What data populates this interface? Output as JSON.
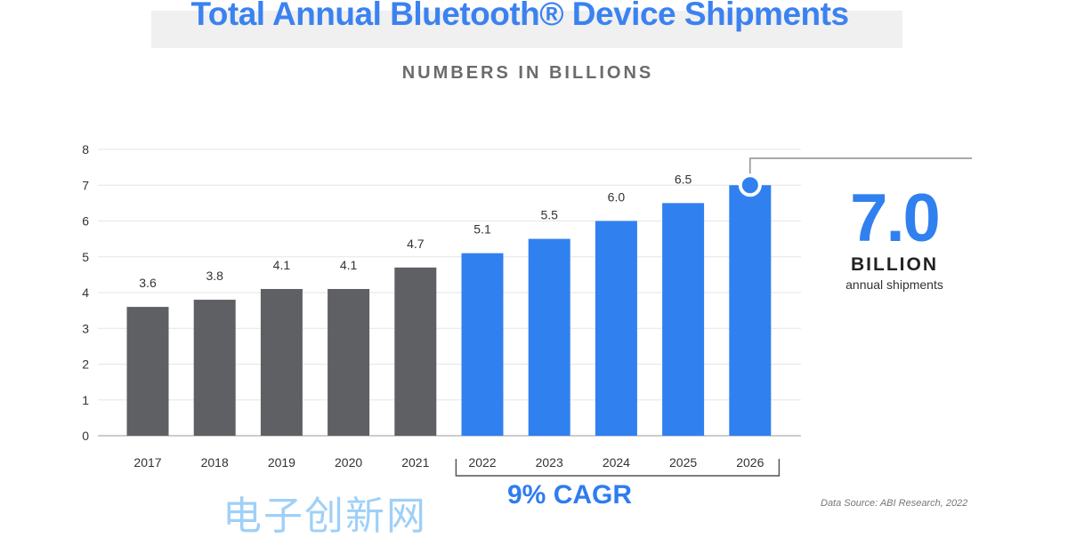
{
  "chart_data": {
    "type": "bar",
    "title": "Total Annual Bluetooth® Device Shipments",
    "subtitle": "NUMBERS IN BILLIONS",
    "categories": [
      "2017",
      "2018",
      "2019",
      "2020",
      "2021",
      "2022",
      "2023",
      "2024",
      "2025",
      "2026"
    ],
    "values": [
      3.6,
      3.8,
      4.1,
      4.1,
      4.7,
      5.1,
      5.5,
      6.0,
      6.5,
      7.0
    ],
    "value_labels": [
      "3.6",
      "3.8",
      "4.1",
      "4.1",
      "4.7",
      "5.1",
      "5.5",
      "6.0",
      "6.5",
      ""
    ],
    "forecast_from": "2022",
    "ylim": [
      0,
      8
    ],
    "yticks": [
      "0",
      "1",
      "2",
      "3",
      "4",
      "5",
      "6",
      "7",
      "8"
    ],
    "grid": true,
    "colors": {
      "historical": "#5f6064",
      "forecast": "#3080f0"
    },
    "callout": {
      "value": "7.0",
      "unit": "BILLION",
      "desc": "annual shipments"
    },
    "cagr": "9% CAGR",
    "source": "Data Source: ABI Research, 2022"
  },
  "watermark": "电子创新网"
}
